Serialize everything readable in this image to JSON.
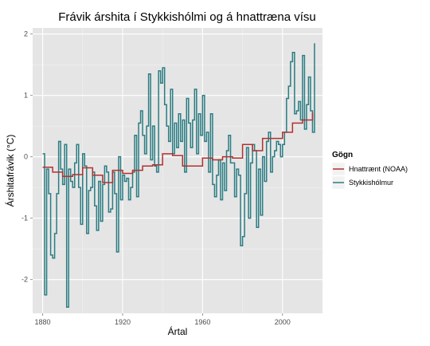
{
  "chart_data": {
    "type": "line",
    "step": true,
    "title": "Frávik árshita í Stykkishólmi og á hnattræna vísu",
    "xlabel": "Ártal",
    "ylabel": "Árshitafrávik (°C)",
    "xlim": [
      1875,
      2020
    ],
    "ylim": [
      -2.55,
      2.1
    ],
    "x_ticks": [
      1880,
      1920,
      1960,
      2000
    ],
    "y_ticks": [
      -2,
      -1,
      0,
      1,
      2
    ],
    "grid": true,
    "legend": {
      "title": "Gögn",
      "position": "right"
    },
    "series": [
      {
        "name": "Hnattrænt (NOAA)",
        "color": "#b2302e",
        "x": [
          1880,
          1885,
          1890,
          1895,
          1900,
          1905,
          1910,
          1915,
          1920,
          1925,
          1930,
          1935,
          1940,
          1945,
          1950,
          1955,
          1960,
          1965,
          1970,
          1975,
          1980,
          1985,
          1990,
          1995,
          2000,
          2005,
          2010,
          2015
        ],
        "y": [
          -0.17,
          -0.25,
          -0.32,
          -0.29,
          -0.18,
          -0.3,
          -0.42,
          -0.22,
          -0.27,
          -0.22,
          -0.15,
          -0.13,
          0.05,
          0.02,
          -0.15,
          -0.15,
          -0.02,
          -0.05,
          0.0,
          -0.02,
          0.2,
          0.1,
          0.3,
          0.3,
          0.4,
          0.55,
          0.6,
          0.72
        ]
      },
      {
        "name": "Stykkishólmur",
        "color": "#2a7d83",
        "x": [
          1880,
          1881,
          1882,
          1883,
          1884,
          1885,
          1886,
          1887,
          1888,
          1889,
          1890,
          1891,
          1892,
          1893,
          1894,
          1895,
          1896,
          1897,
          1898,
          1899,
          1900,
          1901,
          1902,
          1903,
          1904,
          1905,
          1906,
          1907,
          1908,
          1909,
          1910,
          1911,
          1912,
          1913,
          1914,
          1915,
          1916,
          1917,
          1918,
          1919,
          1920,
          1921,
          1922,
          1923,
          1924,
          1925,
          1926,
          1927,
          1928,
          1929,
          1930,
          1931,
          1932,
          1933,
          1934,
          1935,
          1936,
          1937,
          1938,
          1939,
          1940,
          1941,
          1942,
          1943,
          1944,
          1945,
          1946,
          1947,
          1948,
          1949,
          1950,
          1951,
          1952,
          1953,
          1954,
          1955,
          1956,
          1957,
          1958,
          1959,
          1960,
          1961,
          1962,
          1963,
          1964,
          1965,
          1966,
          1967,
          1968,
          1969,
          1970,
          1971,
          1972,
          1973,
          1974,
          1975,
          1976,
          1977,
          1978,
          1979,
          1980,
          1981,
          1982,
          1983,
          1984,
          1985,
          1986,
          1987,
          1988,
          1989,
          1990,
          1991,
          1992,
          1993,
          1994,
          1995,
          1996,
          1997,
          1998,
          1999,
          2000,
          2001,
          2002,
          2003,
          2004,
          2005,
          2006,
          2007,
          2008,
          2009,
          2010,
          2011,
          2012,
          2013,
          2014,
          2015
        ],
        "y": [
          0.05,
          -2.25,
          -0.2,
          -0.6,
          -1.6,
          -1.65,
          -1.25,
          -0.6,
          0.25,
          -0.2,
          -0.45,
          0.2,
          -2.45,
          -0.2,
          -0.4,
          -0.5,
          -0.1,
          0.2,
          -0.5,
          -1.1,
          0.05,
          -0.15,
          -1.25,
          -0.55,
          -0.5,
          -0.25,
          -0.8,
          -1.2,
          -0.4,
          -1.05,
          -0.45,
          -0.15,
          -0.25,
          -0.9,
          -0.85,
          -0.25,
          -0.6,
          -1.55,
          0.0,
          -0.7,
          -0.3,
          -0.4,
          -0.35,
          -0.7,
          -0.5,
          -0.25,
          0.35,
          -0.65,
          0.55,
          0.75,
          0.35,
          0.05,
          0.5,
          1.35,
          -0.05,
          0.5,
          -0.15,
          -0.25,
          1.4,
          1.2,
          1.45,
          0.85,
          0.5,
          0.25,
          1.1,
          0.05,
          0.55,
          0.15,
          0.7,
          0.25,
          0.6,
          -0.25,
          0.95,
          0.55,
          0.15,
          0.6,
          1.1,
          0.05,
          0.7,
          0.35,
          1.0,
          0.25,
          0.4,
          -0.25,
          0.7,
          -0.45,
          -0.65,
          -0.3,
          -0.05,
          -0.7,
          -0.1,
          -0.55,
          0.1,
          0.35,
          -0.1,
          -0.1,
          -0.65,
          -0.2,
          -0.3,
          -1.45,
          -1.3,
          -0.6,
          0.15,
          -1.0,
          -0.1,
          0.2,
          0.1,
          -1.15,
          -0.2,
          -0.95,
          0.0,
          -0.4,
          0.25,
          0.4,
          -0.25,
          0.0,
          0.1,
          0.25,
          0.2,
          0.0,
          0.2,
          0.4,
          0.95,
          1.15,
          1.55,
          1.7,
          0.7,
          0.75,
          0.9,
          0.6,
          1.65,
          0.45,
          0.85,
          1.3,
          0.75,
          0.4
        ],
        "x_extra": [
          2016
        ],
        "y_extra": [
          1.85
        ]
      }
    ]
  }
}
